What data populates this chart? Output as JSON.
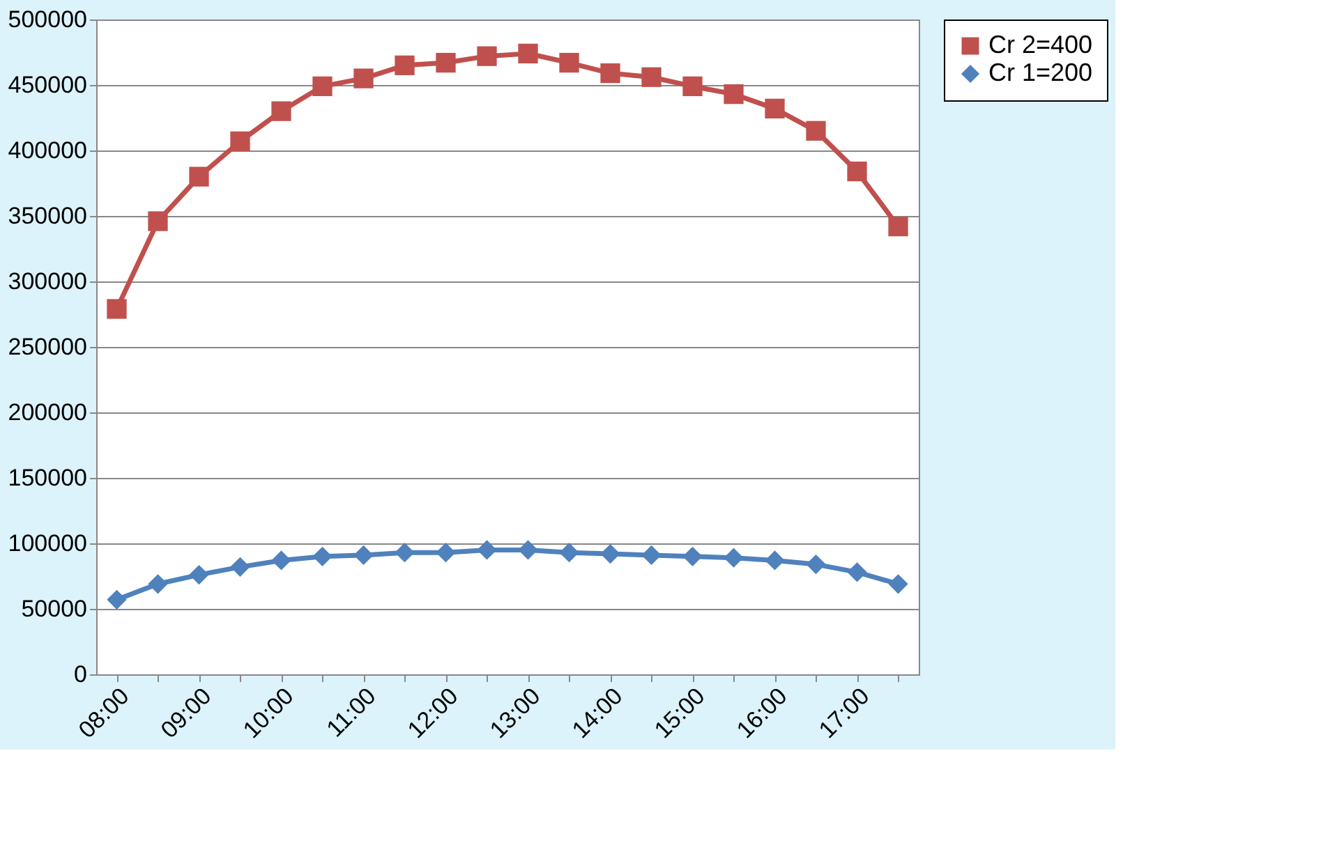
{
  "chart_data": {
    "type": "line",
    "categories": [
      "08:00",
      null,
      "09:00",
      null,
      "10:00",
      null,
      "11:00",
      null,
      "12:00",
      null,
      "13:00",
      null,
      "14:00",
      null,
      "15:00",
      null,
      "16:00",
      null,
      "17:00",
      null
    ],
    "series": [
      {
        "name": "Cr 2=400",
        "color": "#c0504d",
        "marker": "square",
        "values": [
          279000,
          346000,
          380000,
          407000,
          430000,
          449000,
          455000,
          465000,
          467000,
          472000,
          474000,
          467000,
          459000,
          456000,
          449000,
          443000,
          432000,
          415000,
          384000,
          342000
        ]
      },
      {
        "name": "Cr 1=200",
        "color": "#4f81bd",
        "marker": "diamond",
        "values": [
          57000,
          69000,
          76000,
          82000,
          87000,
          90000,
          91000,
          93000,
          93000,
          95000,
          95000,
          93000,
          92000,
          91000,
          90000,
          89000,
          87000,
          84000,
          78000,
          69000
        ]
      }
    ],
    "ylim": [
      0,
      500000
    ],
    "yticks": [
      0,
      50000,
      100000,
      150000,
      200000,
      250000,
      300000,
      350000,
      400000,
      450000,
      500000
    ],
    "grid": "y",
    "legend": "right",
    "line_style": "solid"
  }
}
